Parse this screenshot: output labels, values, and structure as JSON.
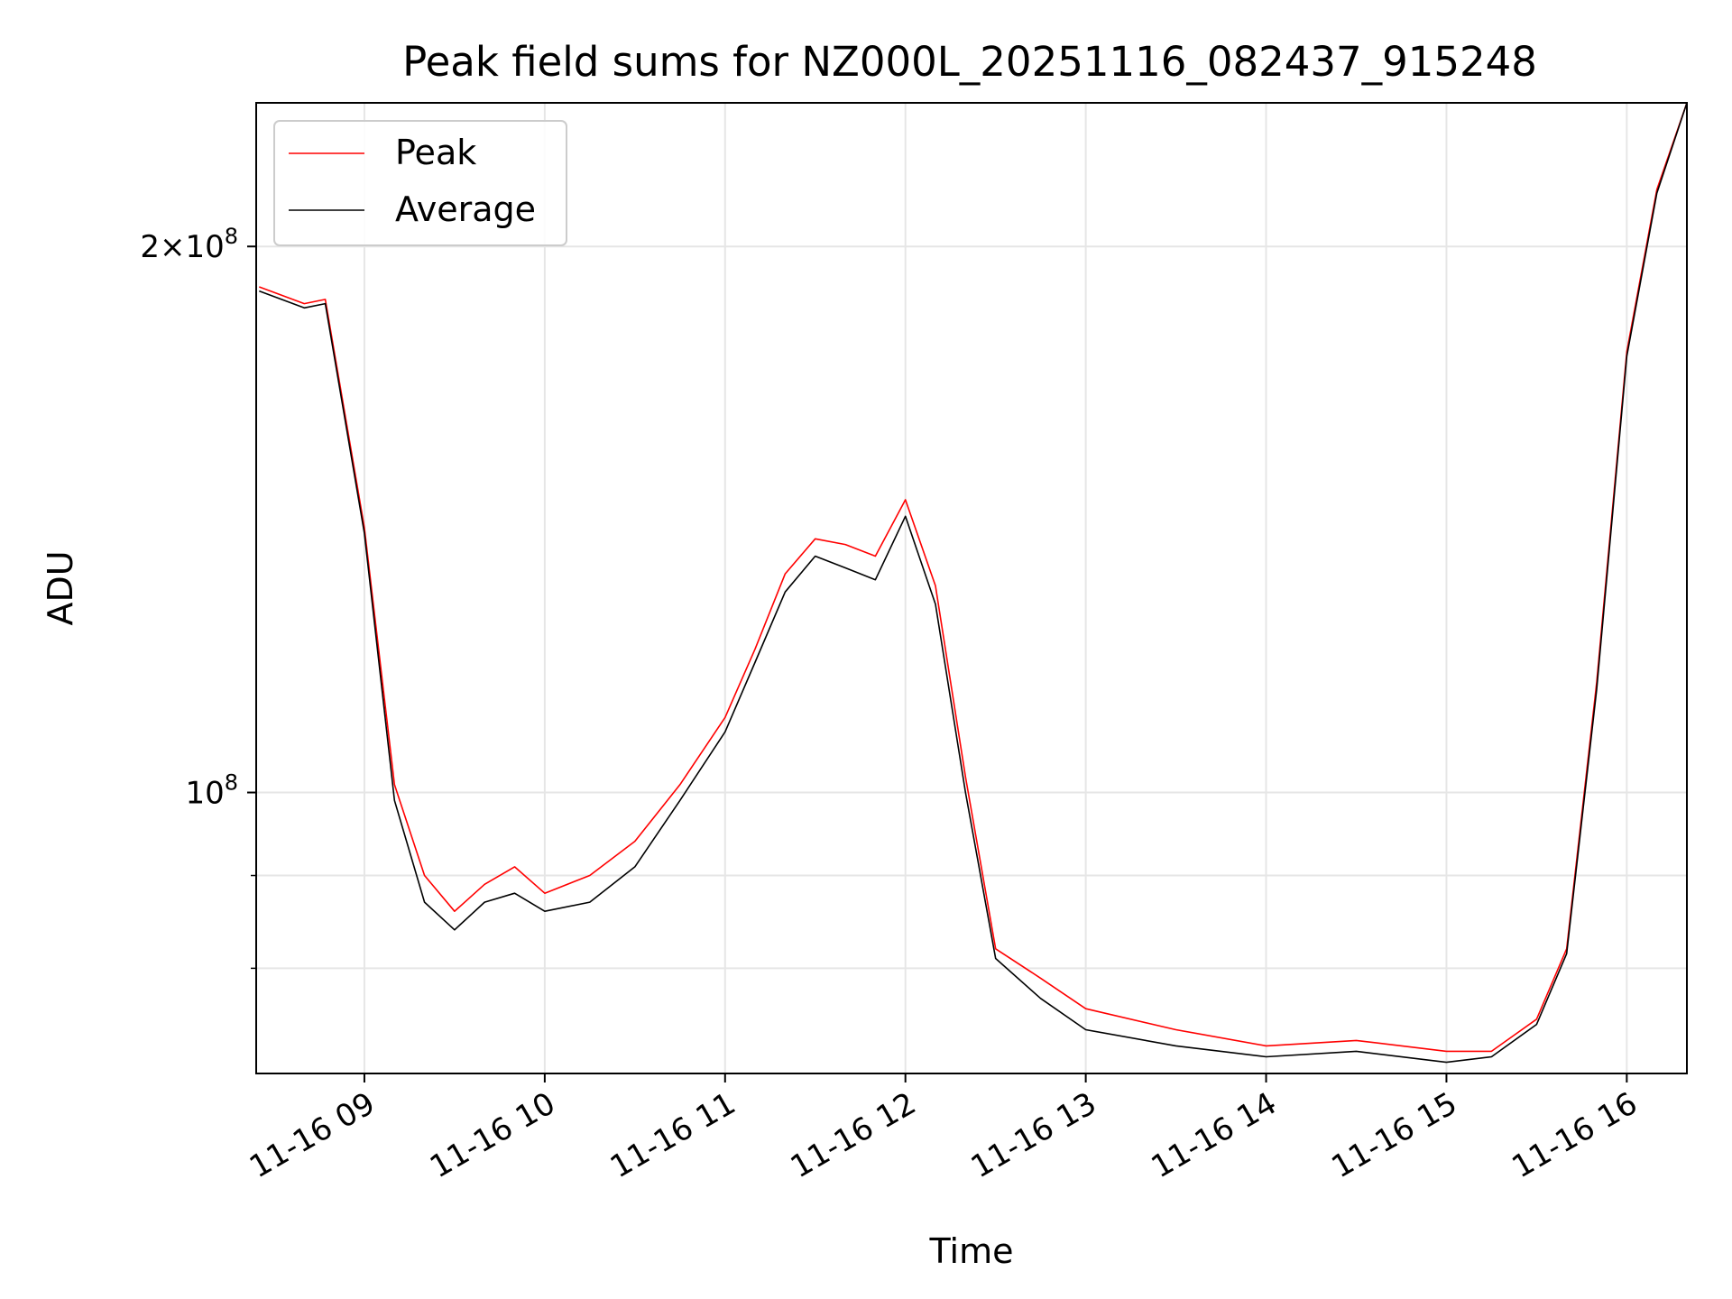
{
  "chart_data": {
    "type": "line",
    "title": "Peak field sums for NZ000L_20251116_082437_915248",
    "xlabel": "Time",
    "ylabel": "ADU",
    "yscale": "log",
    "grid": true,
    "legend_placement": "upper-left",
    "xlim": [
      "2025-11-16T08:24",
      "2025-11-16T16:20"
    ],
    "ylim": [
      70000000,
      240000000
    ],
    "x_ticks": [
      "2025-11-16T09:00",
      "2025-11-16T10:00",
      "2025-11-16T11:00",
      "2025-11-16T12:00",
      "2025-11-16T13:00",
      "2025-11-16T14:00",
      "2025-11-16T15:00",
      "2025-11-16T16:00"
    ],
    "x_tick_labels": [
      "11-16 09",
      "11-16 10",
      "11-16 11",
      "11-16 12",
      "11-16 13",
      "11-16 14",
      "11-16 15",
      "11-16 16"
    ],
    "y_ticks": [
      {
        "value": 200000000,
        "base": "2×10",
        "exp": "8"
      },
      {
        "value": 100000000,
        "base": "10",
        "exp": "8"
      }
    ],
    "y_minor_ticks": [
      80000000,
      90000000
    ],
    "series": [
      {
        "name": "Peak",
        "color": "#ff0000",
        "x": [
          "2025-11-16T08:25",
          "2025-11-16T08:40",
          "2025-11-16T08:47",
          "2025-11-16T09:00",
          "2025-11-16T09:10",
          "2025-11-16T09:20",
          "2025-11-16T09:30",
          "2025-11-16T09:40",
          "2025-11-16T09:50",
          "2025-11-16T10:00",
          "2025-11-16T10:15",
          "2025-11-16T10:30",
          "2025-11-16T10:45",
          "2025-11-16T11:00",
          "2025-11-16T11:10",
          "2025-11-16T11:20",
          "2025-11-16T11:30",
          "2025-11-16T11:40",
          "2025-11-16T11:50",
          "2025-11-16T12:00",
          "2025-11-16T12:10",
          "2025-11-16T12:20",
          "2025-11-16T12:30",
          "2025-11-16T12:45",
          "2025-11-16T13:00",
          "2025-11-16T13:30",
          "2025-11-16T14:00",
          "2025-11-16T14:30",
          "2025-11-16T15:00",
          "2025-11-16T15:15",
          "2025-11-16T15:30",
          "2025-11-16T15:40",
          "2025-11-16T15:50",
          "2025-11-16T16:00",
          "2025-11-16T16:10",
          "2025-11-16T16:20"
        ],
        "y": [
          190000000,
          186000000,
          187000000,
          140000000,
          101000000,
          90000000,
          86000000,
          89000000,
          91000000,
          88000000,
          90000000,
          94000000,
          101000000,
          110000000,
          120000000,
          132000000,
          138000000,
          137000000,
          135000000,
          145000000,
          130000000,
          102000000,
          82000000,
          79000000,
          76000000,
          74000000,
          72500000,
          73000000,
          72000000,
          72000000,
          75000000,
          82000000,
          115000000,
          175000000,
          215000000,
          240000000
        ]
      },
      {
        "name": "Average",
        "color": "#000000",
        "x": [
          "2025-11-16T08:25",
          "2025-11-16T08:40",
          "2025-11-16T08:47",
          "2025-11-16T09:00",
          "2025-11-16T09:10",
          "2025-11-16T09:20",
          "2025-11-16T09:30",
          "2025-11-16T09:40",
          "2025-11-16T09:50",
          "2025-11-16T10:00",
          "2025-11-16T10:15",
          "2025-11-16T10:30",
          "2025-11-16T10:45",
          "2025-11-16T11:00",
          "2025-11-16T11:10",
          "2025-11-16T11:20",
          "2025-11-16T11:30",
          "2025-11-16T11:40",
          "2025-11-16T11:50",
          "2025-11-16T12:00",
          "2025-11-16T12:10",
          "2025-11-16T12:20",
          "2025-11-16T12:30",
          "2025-11-16T12:45",
          "2025-11-16T13:00",
          "2025-11-16T13:30",
          "2025-11-16T14:00",
          "2025-11-16T14:30",
          "2025-11-16T15:00",
          "2025-11-16T15:15",
          "2025-11-16T15:30",
          "2025-11-16T15:40",
          "2025-11-16T15:50",
          "2025-11-16T16:00",
          "2025-11-16T16:10",
          "2025-11-16T16:20"
        ],
        "y": [
          189000000,
          185000000,
          186000000,
          139000000,
          99000000,
          87000000,
          84000000,
          87000000,
          88000000,
          86000000,
          87000000,
          91000000,
          99000000,
          108000000,
          118000000,
          129000000,
          135000000,
          133000000,
          131000000,
          142000000,
          127000000,
          100000000,
          81000000,
          77000000,
          74000000,
          72500000,
          71500000,
          72000000,
          71000000,
          71500000,
          74500000,
          81500000,
          114000000,
          174000000,
          214000000,
          240000000
        ]
      }
    ]
  }
}
